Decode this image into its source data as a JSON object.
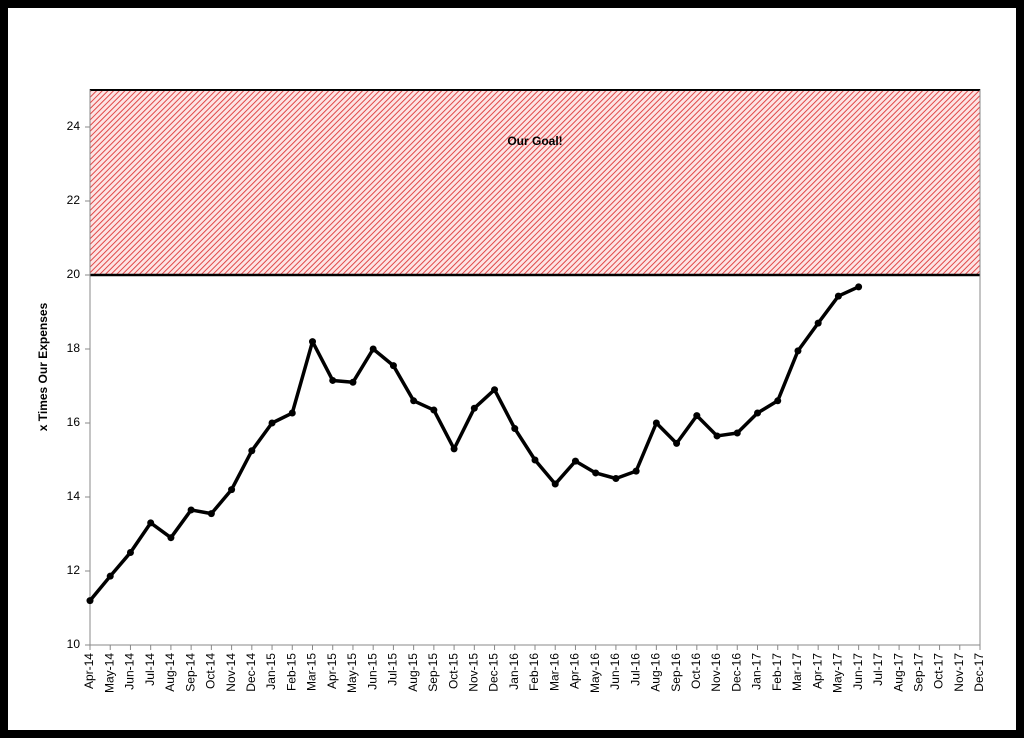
{
  "chart_data": {
    "type": "line",
    "y_label": "x Times Our Expenses",
    "annotation": "Our Goal!",
    "goal_range": [
      20,
      25
    ],
    "goal_color": "#e04848",
    "categories": [
      "Apr-14",
      "May-14",
      "Jun-14",
      "Jul-14",
      "Aug-14",
      "Sep-14",
      "Oct-14",
      "Nov-14",
      "Dec-14",
      "Jan-15",
      "Feb-15",
      "Mar-15",
      "Apr-15",
      "May-15",
      "Jun-15",
      "Jul-15",
      "Aug-15",
      "Sep-15",
      "Oct-15",
      "Nov-15",
      "Dec-15",
      "Jan-16",
      "Feb-16",
      "Mar-16",
      "Apr-16",
      "May-16",
      "Jun-16",
      "Jul-16",
      "Aug-16",
      "Sep-16",
      "Oct-16",
      "Nov-16",
      "Dec-16",
      "Jan-17",
      "Feb-17",
      "Mar-17",
      "Apr-17",
      "May-17",
      "Jun-17",
      "Jul-17",
      "Aug-17",
      "Sep-17",
      "Oct-17",
      "Nov-17",
      "Dec-17"
    ],
    "series": [
      {
        "name": "x Times Our Expenses",
        "color": "#000000",
        "values": [
          11.2,
          11.86,
          12.5,
          13.3,
          12.9,
          13.65,
          13.55,
          14.2,
          15.25,
          16.0,
          16.27,
          18.2,
          17.15,
          17.1,
          18.0,
          17.55,
          16.6,
          16.35,
          15.3,
          16.4,
          16.9,
          15.85,
          15.0,
          14.35,
          14.97,
          14.65,
          14.5,
          14.7,
          16.0,
          15.45,
          16.2,
          15.65,
          15.73,
          16.27,
          16.6,
          17.95,
          18.7,
          19.43,
          19.68,
          null,
          null,
          null,
          null,
          null,
          null
        ]
      }
    ],
    "ylim": [
      10,
      25
    ],
    "yticks": [
      10,
      12,
      14,
      16,
      18,
      20,
      22,
      24
    ],
    "grid": false
  }
}
